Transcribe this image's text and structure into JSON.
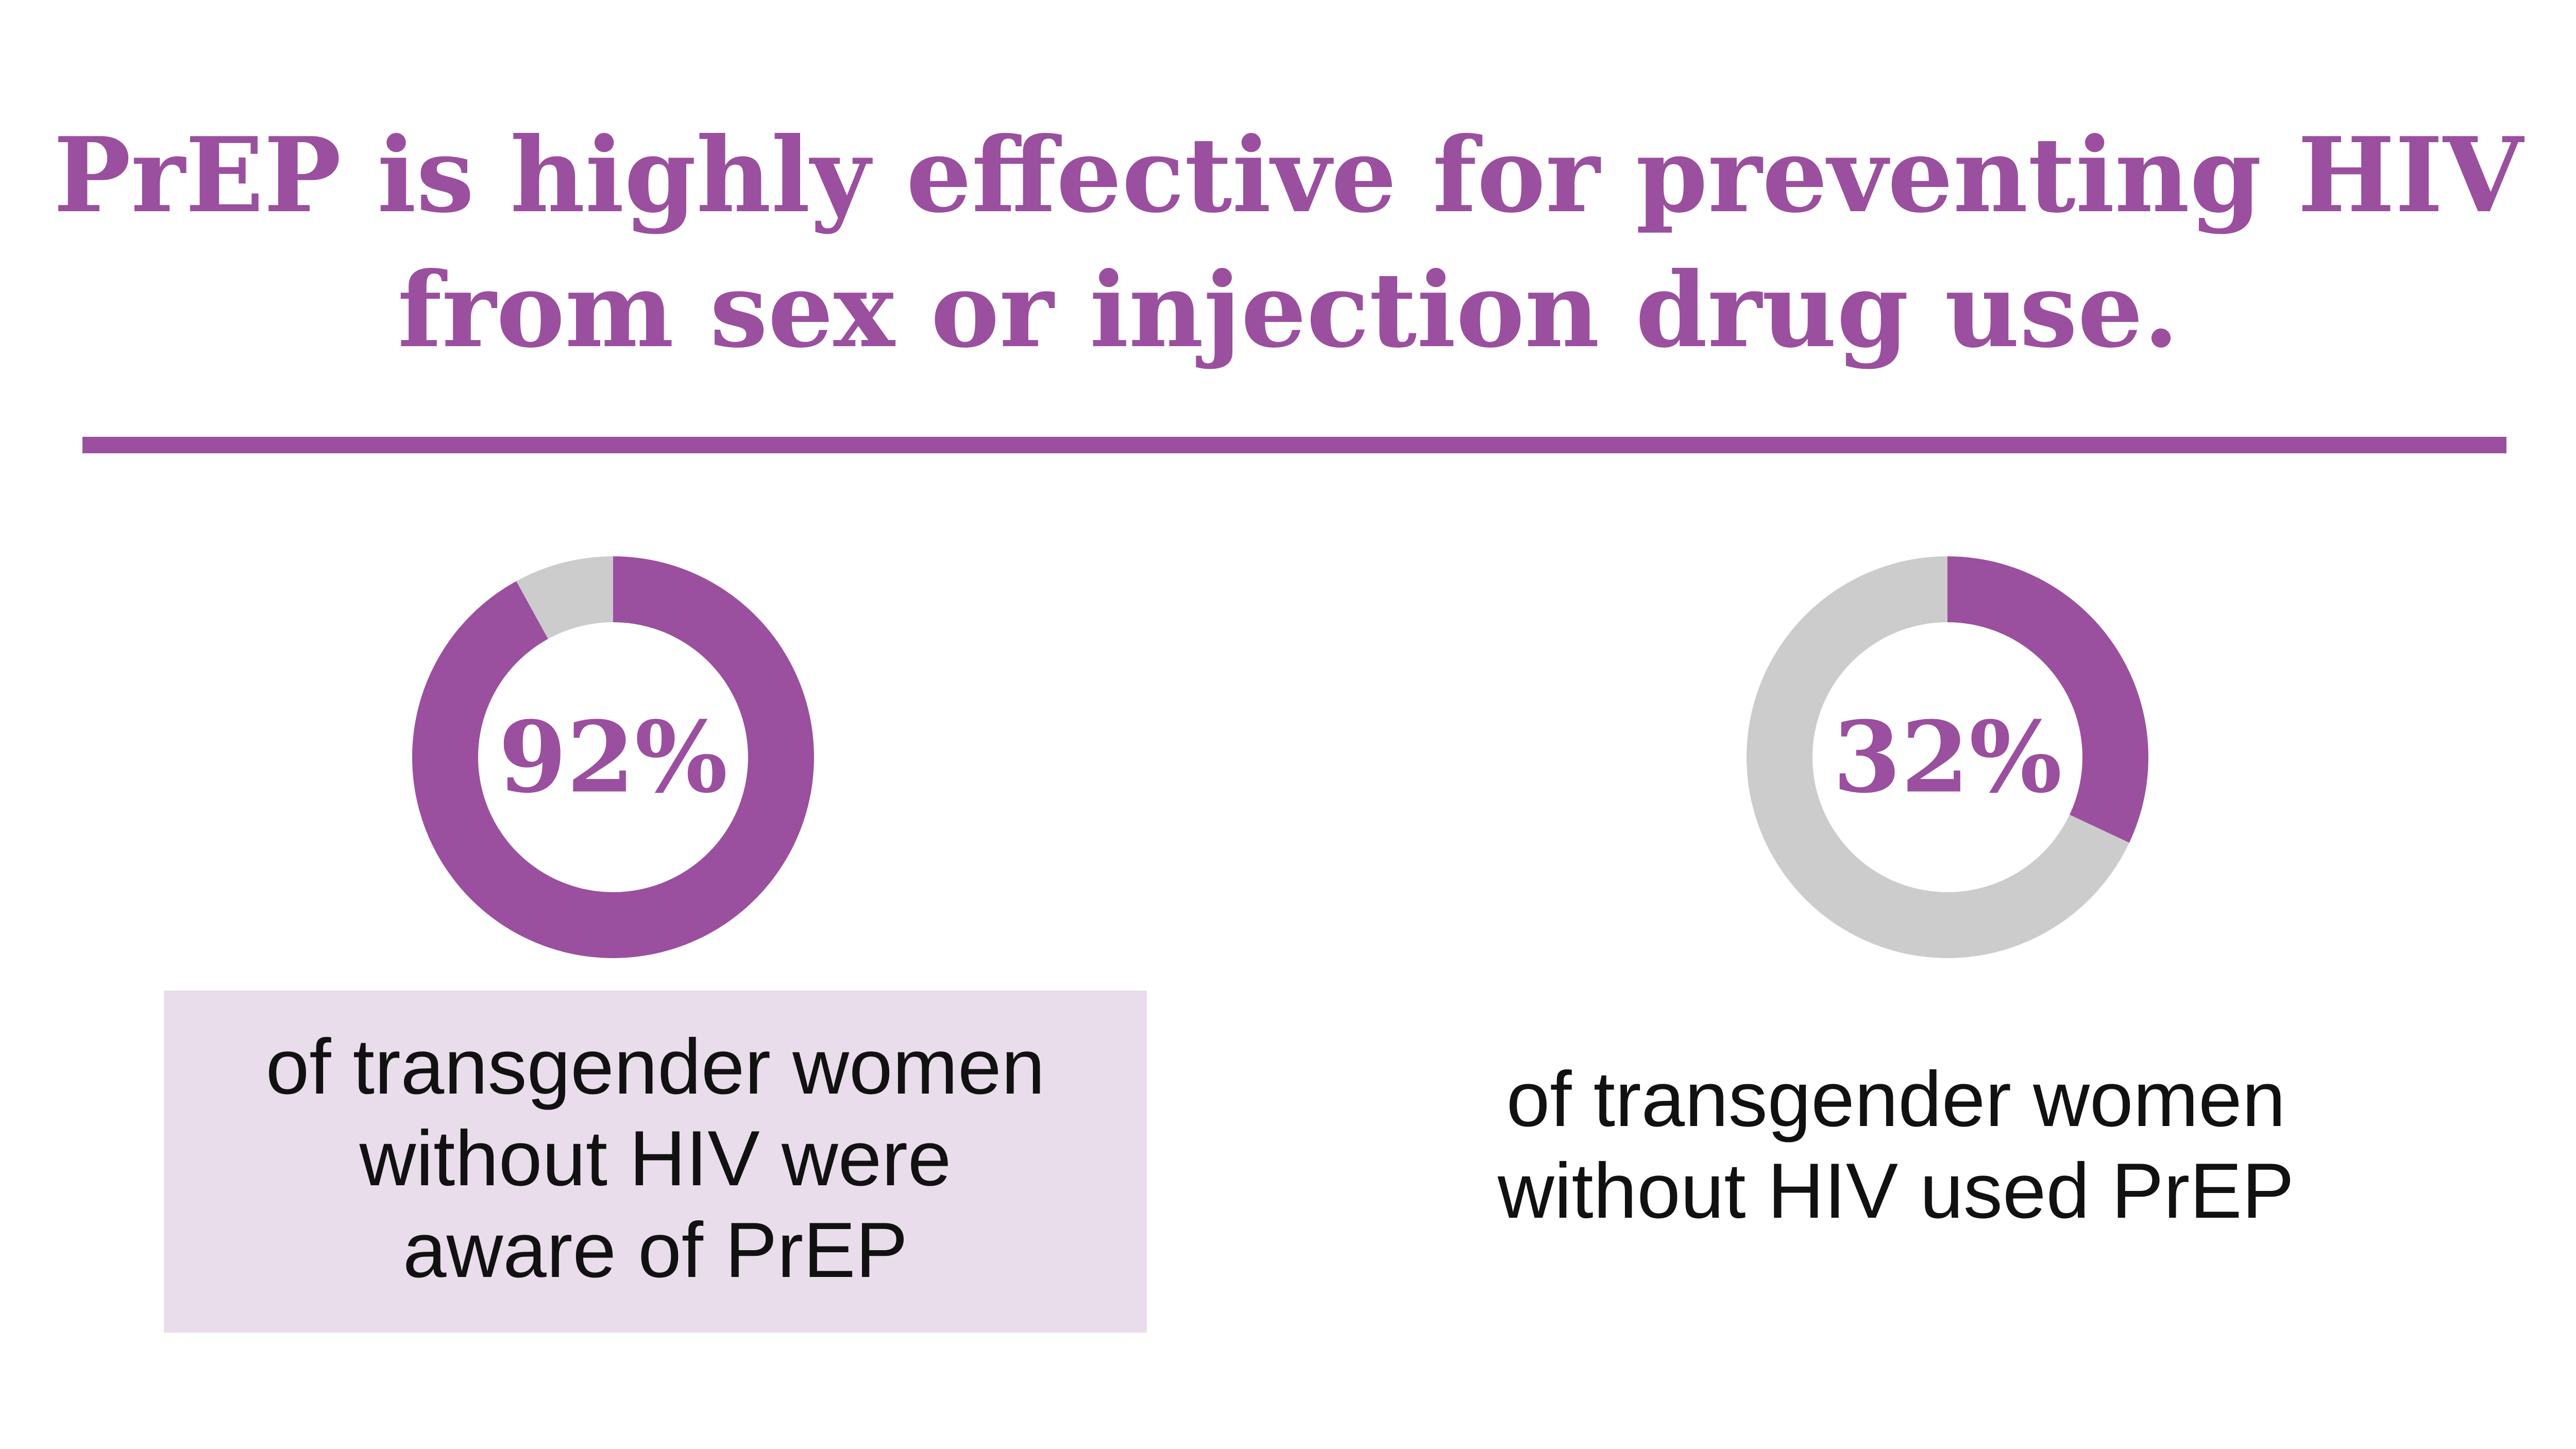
{
  "colors": {
    "accent": "#9b4f9f",
    "track": "#cccccc",
    "caption_box": "#e9dceb",
    "caption_text": "#111111"
  },
  "header": {
    "title_line1": "PrEP is highly effective for preventing HIV",
    "title_line2": "from sex or injection drug use."
  },
  "chart_data": [
    {
      "type": "pie",
      "value": 92,
      "label": "92%",
      "caption_lines": [
        "of transgender women",
        "without HIV were",
        "aware of PrEP"
      ],
      "highlighted": true
    },
    {
      "type": "pie",
      "value": 32,
      "label": "32%",
      "caption_lines": [
        "of transgender women",
        "without HIV used PrEP"
      ],
      "highlighted": false
    }
  ]
}
